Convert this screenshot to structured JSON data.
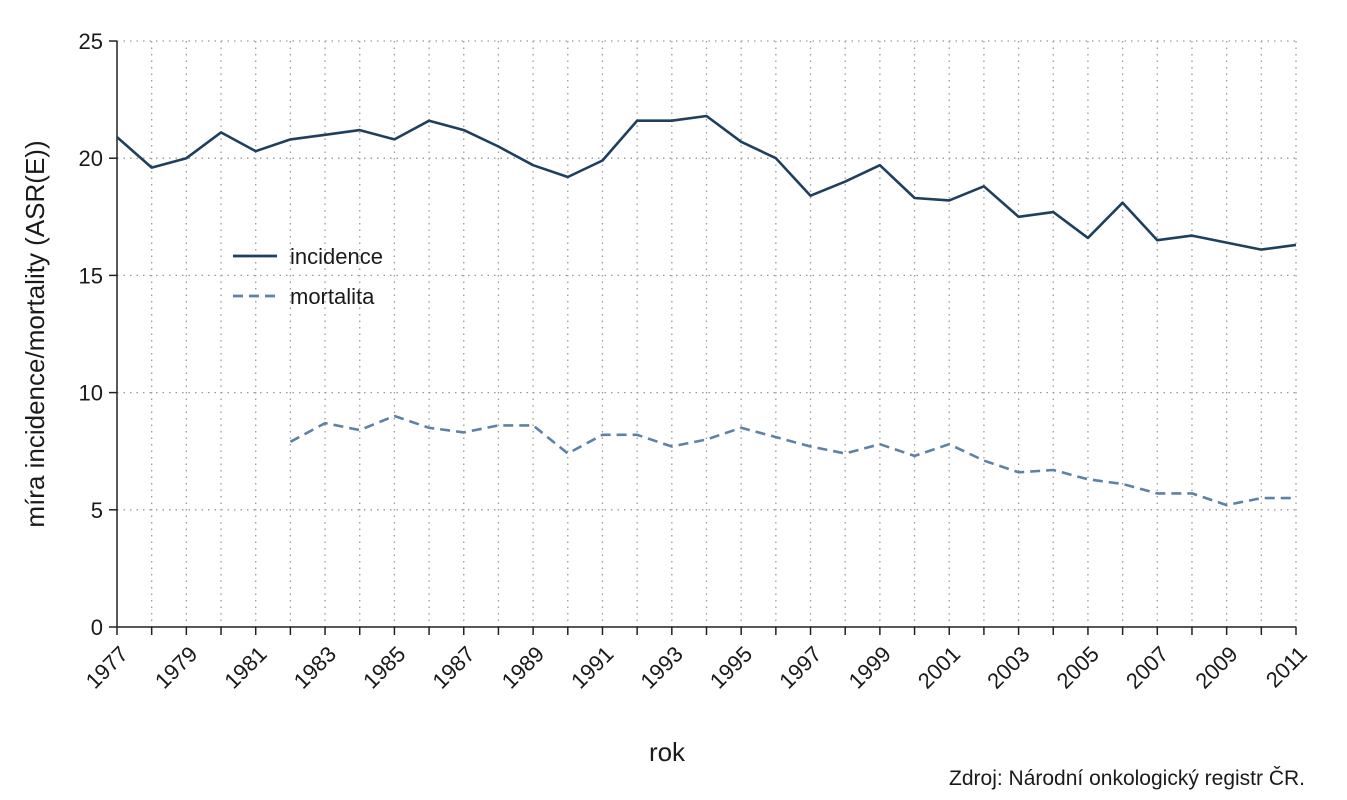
{
  "chart_data": {
    "type": "line",
    "xlabel": "rok",
    "ylabel": "míra incidence/mortality (ASR(E))",
    "ylim": [
      0,
      25
    ],
    "xlim": [
      1977,
      2011
    ],
    "y_ticks": [
      0,
      5,
      10,
      15,
      20,
      25
    ],
    "x_tick_labels": [
      "1977",
      "1979",
      "1981",
      "1983",
      "1985",
      "1987",
      "1989",
      "1991",
      "1993",
      "1995",
      "1997",
      "1999",
      "2001",
      "2003",
      "2005",
      "2007",
      "2009",
      "2011"
    ],
    "grid": true,
    "legend_position": "left-center",
    "series": [
      {
        "name": "incidence",
        "color": "#1e3f5e",
        "style": "solid",
        "x": [
          1977,
          1978,
          1979,
          1980,
          1981,
          1982,
          1983,
          1984,
          1985,
          1986,
          1987,
          1988,
          1989,
          1990,
          1991,
          1992,
          1993,
          1994,
          1995,
          1996,
          1997,
          1998,
          1999,
          2000,
          2001,
          2002,
          2003,
          2004,
          2005,
          2006,
          2007,
          2008,
          2009,
          2010,
          2011
        ],
        "values": [
          20.9,
          19.6,
          20.0,
          21.1,
          20.3,
          20.8,
          21.0,
          21.2,
          20.8,
          21.6,
          21.2,
          20.5,
          19.7,
          19.2,
          19.9,
          21.6,
          21.6,
          21.8,
          20.7,
          20.0,
          18.4,
          19.0,
          19.7,
          18.3,
          18.2,
          18.8,
          17.5,
          17.7,
          16.6,
          18.1,
          16.5,
          16.7,
          16.4,
          16.1,
          16.3
        ]
      },
      {
        "name": "mortalita",
        "color": "#5d82a6",
        "style": "dashed",
        "x": [
          1982,
          1983,
          1984,
          1985,
          1986,
          1987,
          1988,
          1989,
          1990,
          1991,
          1992,
          1993,
          1994,
          1995,
          1996,
          1997,
          1998,
          1999,
          2000,
          2001,
          2002,
          2003,
          2004,
          2005,
          2006,
          2007,
          2008,
          2009,
          2010,
          2011
        ],
        "values": [
          7.9,
          8.7,
          8.4,
          9.0,
          8.5,
          8.3,
          8.6,
          8.6,
          7.4,
          8.2,
          8.2,
          7.7,
          8.0,
          8.5,
          8.1,
          7.7,
          7.4,
          7.8,
          7.3,
          7.8,
          7.1,
          6.6,
          6.7,
          6.3,
          6.1,
          5.7,
          5.7,
          5.2,
          5.5,
          5.5
        ]
      }
    ],
    "source_note": "Zdroj: Národní onkologický registr ČR."
  }
}
